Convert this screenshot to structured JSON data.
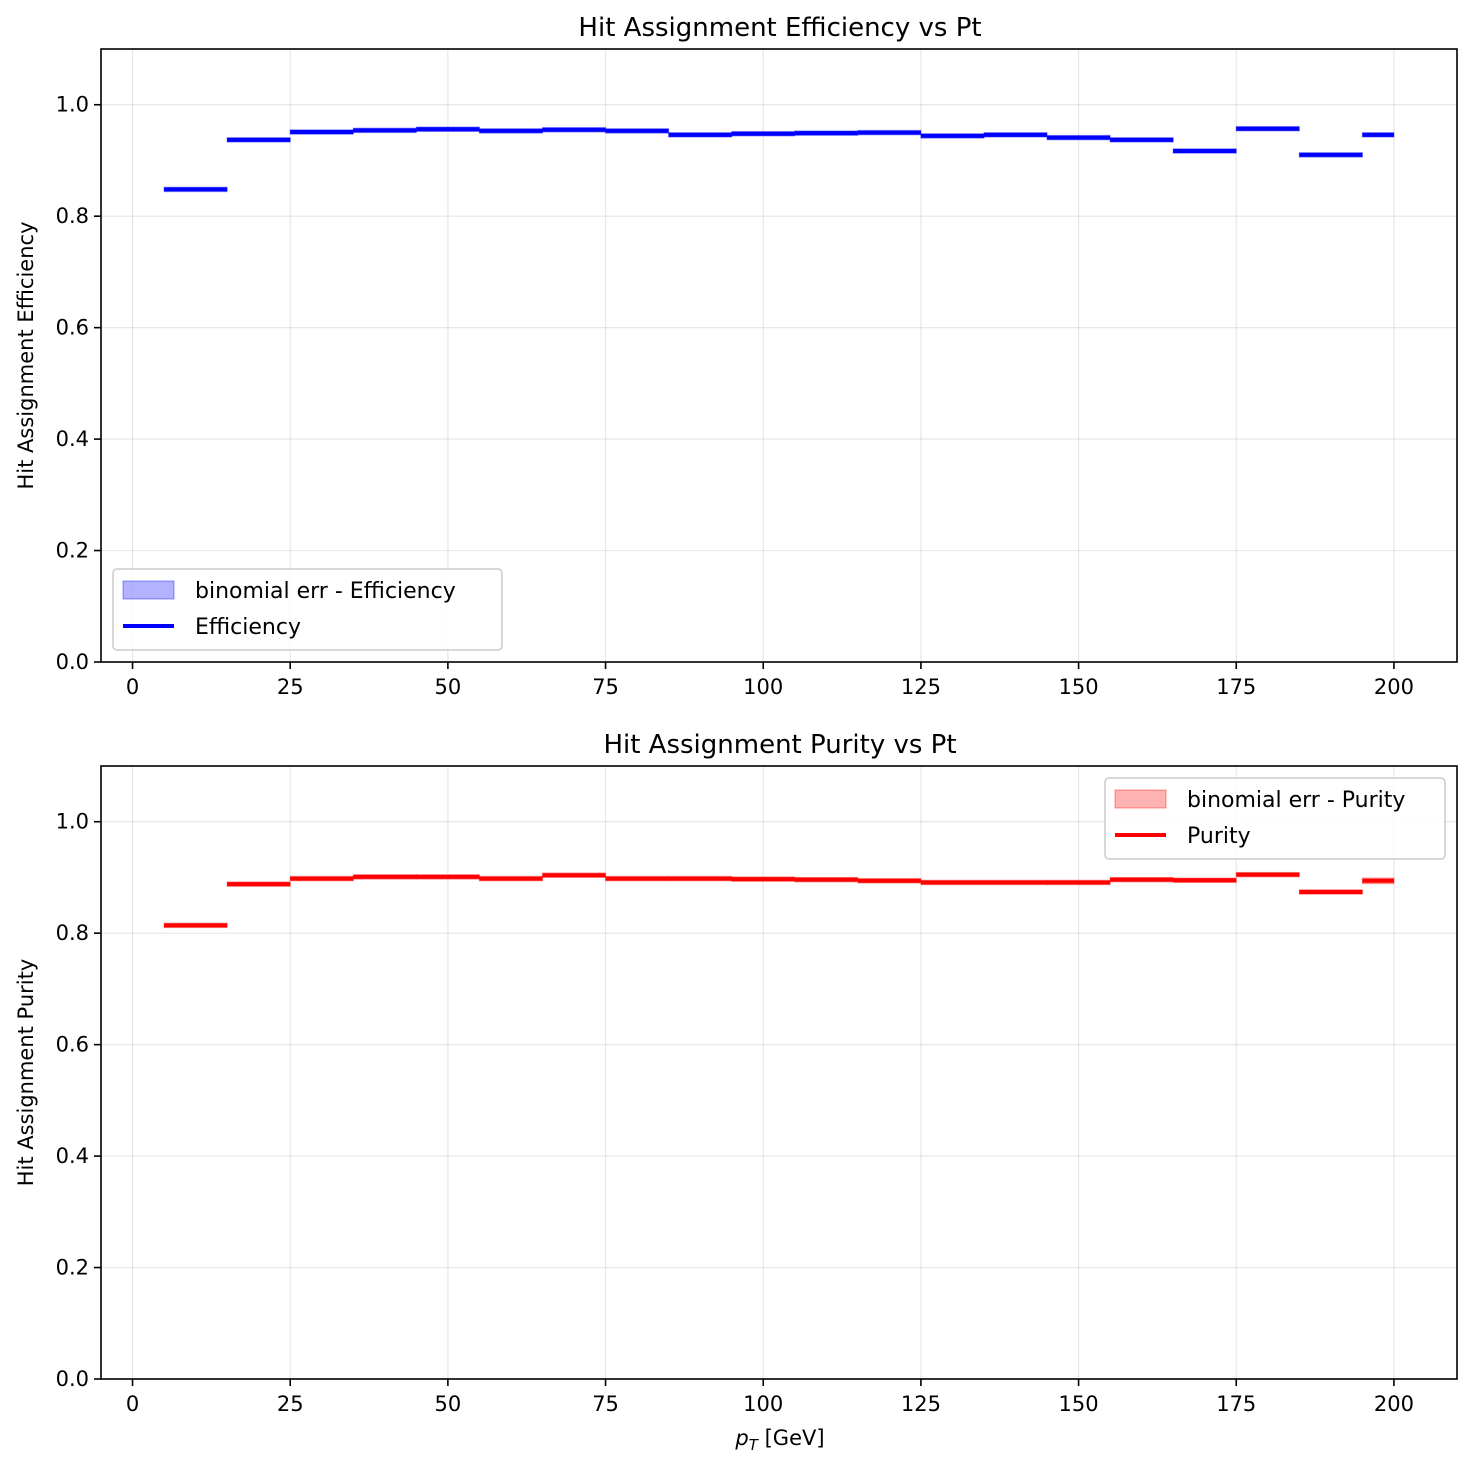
{
  "chart_data": [
    {
      "type": "step",
      "title": "Hit Assignment Efficiency vs Pt",
      "xlabel": "",
      "ylabel": "Hit Assignment Efficiency",
      "xlim": [
        -5,
        210
      ],
      "ylim": [
        0,
        1.1
      ],
      "xticks": [
        "0",
        "25",
        "50",
        "75",
        "100",
        "125",
        "150",
        "175",
        "200"
      ],
      "yticks": [
        "0.0",
        "0.2",
        "0.4",
        "0.6",
        "0.8",
        "1.0"
      ],
      "grid": true,
      "legend_position": "lower-left",
      "color": "#0000ff",
      "band_color": "#0000ff",
      "band_label": "binomial err - Efficiency",
      "line_label": "Efficiency",
      "bin_edges": [
        5,
        15,
        25,
        35,
        45,
        55,
        65,
        75,
        85,
        95,
        105,
        115,
        125,
        135,
        145,
        155,
        165,
        175,
        185,
        195,
        200
      ],
      "values": [
        0.848,
        0.937,
        0.951,
        0.954,
        0.956,
        0.953,
        0.955,
        0.953,
        0.946,
        0.948,
        0.949,
        0.95,
        0.944,
        0.946,
        0.941,
        0.937,
        0.917,
        0.957,
        0.91,
        0.946
      ],
      "errors": [
        0.001,
        0.001,
        0.001,
        0.001,
        0.001,
        0.001,
        0.001,
        0.001,
        0.001,
        0.001,
        0.001,
        0.001,
        0.001,
        0.001,
        0.001,
        0.001,
        0.002,
        0.002,
        0.004,
        0.004
      ]
    },
    {
      "type": "step",
      "title": "Hit Assignment Purity vs Pt",
      "xlabel": "p_T [GeV]",
      "ylabel": "Hit Assignment Purity",
      "xlim": [
        -5,
        210
      ],
      "ylim": [
        0,
        1.1
      ],
      "xticks": [
        "0",
        "25",
        "50",
        "75",
        "100",
        "125",
        "150",
        "175",
        "200"
      ],
      "yticks": [
        "0.0",
        "0.2",
        "0.4",
        "0.6",
        "0.8",
        "1.0"
      ],
      "grid": true,
      "legend_position": "upper-right",
      "color": "#ff0000",
      "band_color": "#ff0000",
      "band_label": "binomial err - Purity",
      "line_label": "Purity",
      "bin_edges": [
        5,
        15,
        25,
        35,
        45,
        55,
        65,
        75,
        85,
        95,
        105,
        115,
        125,
        135,
        145,
        155,
        165,
        175,
        185,
        195,
        200
      ],
      "values": [
        0.814,
        0.888,
        0.898,
        0.901,
        0.901,
        0.898,
        0.904,
        0.898,
        0.898,
        0.897,
        0.896,
        0.894,
        0.891,
        0.891,
        0.891,
        0.896,
        0.895,
        0.905,
        0.874,
        0.894
      ],
      "errors": [
        0.001,
        0.001,
        0.001,
        0.001,
        0.001,
        0.001,
        0.001,
        0.001,
        0.001,
        0.001,
        0.001,
        0.001,
        0.001,
        0.001,
        0.001,
        0.001,
        0.002,
        0.003,
        0.004,
        0.005
      ]
    }
  ]
}
